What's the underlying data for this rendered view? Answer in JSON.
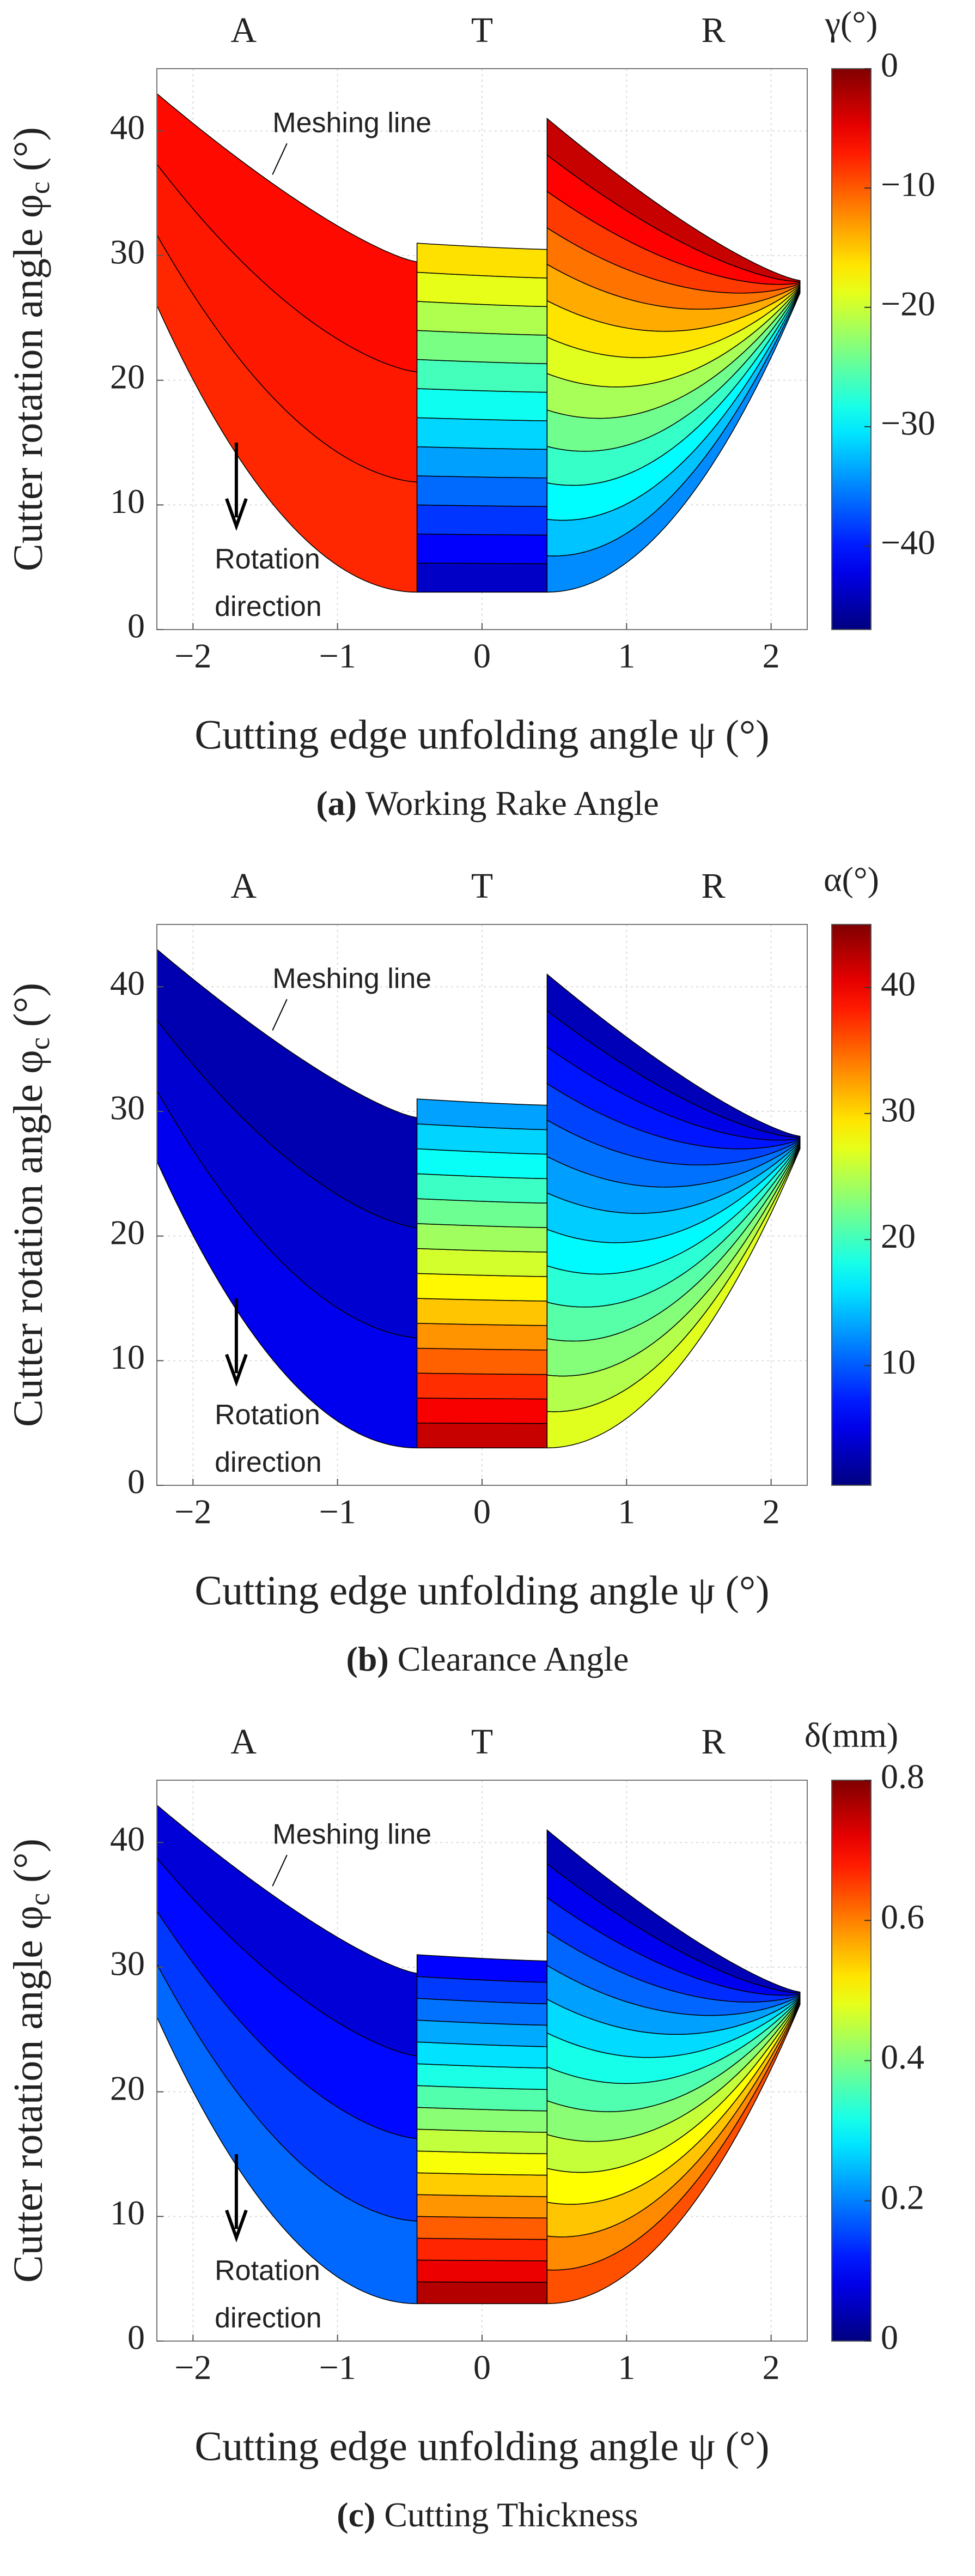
{
  "chart_data": [
    {
      "type": "contour",
      "panel": "(a)",
      "title": "Working Rake Angle",
      "xlabel": "Cutting edge unfolding angle ψ (°)",
      "ylabel": [
        "Cutter rotation angle φ",
        "c",
        " (°)"
      ],
      "colorbar_label": "γ(°)",
      "colormap": "jet",
      "xlim": [
        -2.25,
        2.25
      ],
      "ylim": [
        0,
        45
      ],
      "xticks": [
        {
          "value": -2,
          "label": "−2"
        },
        {
          "value": -1,
          "label": "−1"
        },
        0,
        1,
        2
      ],
      "yticks": [
        0,
        10,
        20,
        30,
        40
      ],
      "clim": [
        -47,
        0
      ],
      "cticks": [
        0,
        {
          "value": -10,
          "label": "−10"
        },
        {
          "value": -20,
          "label": "−20"
        },
        {
          "value": -30,
          "label": "−30"
        },
        {
          "value": -40,
          "label": "−40"
        }
      ],
      "grid": true,
      "annotations": [
        "Meshing line",
        "Rotation",
        "direction"
      ],
      "regions": [
        {
          "label": "A",
          "x": [
            -2.25,
            -0.45
          ],
          "top": [
            43,
            29.5
          ],
          "bottom": [
            26,
            3
          ],
          "value_range": [
            -6,
            -8
          ],
          "bands": 3
        },
        {
          "label": "T",
          "x": [
            -0.45,
            0.45
          ],
          "top": [
            31,
            30.5
          ],
          "bottom": [
            3,
            3
          ],
          "value_range": [
            -15,
            -45
          ],
          "bands": 12
        },
        {
          "label": "R",
          "x": [
            0.45,
            2.2
          ],
          "top": [
            41,
            28
          ],
          "bottom": [
            3,
            27
          ],
          "value_range": [
            -2,
            -36
          ],
          "bands": 13
        }
      ]
    },
    {
      "type": "contour",
      "panel": "(b)",
      "title": "Clearance Angle",
      "xlabel": "Cutting edge unfolding angle ψ (°)",
      "ylabel": [
        "Cutter rotation angle φ",
        "c",
        " (°)"
      ],
      "colorbar_label": "α(°)",
      "colormap": "jet",
      "xlim": [
        -2.25,
        2.25
      ],
      "ylim": [
        0,
        45
      ],
      "xticks": [
        {
          "value": -2,
          "label": "−2"
        },
        {
          "value": -1,
          "label": "−1"
        },
        0,
        1,
        2
      ],
      "yticks": [
        0,
        10,
        20,
        30,
        40
      ],
      "clim": [
        0.5,
        45
      ],
      "cticks": [
        10,
        20,
        30,
        40
      ],
      "grid": true,
      "annotations": [
        "Meshing line",
        "Rotation",
        "direction"
      ],
      "regions": [
        {
          "label": "A",
          "x": [
            -2.25,
            -0.45
          ],
          "top": [
            43,
            29.5
          ],
          "bottom": [
            26,
            3
          ],
          "value_range": [
            2,
            6
          ],
          "bands": 3
        },
        {
          "label": "T",
          "x": [
            -0.45,
            0.45
          ],
          "top": [
            31,
            30.5
          ],
          "bottom": [
            3,
            3
          ],
          "value_range": [
            12,
            43
          ],
          "bands": 14
        },
        {
          "label": "R",
          "x": [
            0.45,
            2.2
          ],
          "top": [
            41,
            28
          ],
          "bottom": [
            3,
            27
          ],
          "value_range": [
            2,
            28
          ],
          "bands": 13
        }
      ]
    },
    {
      "type": "contour",
      "panel": "(c)",
      "title": "Cutting Thickness",
      "xlabel": "Cutting edge unfolding angle ψ (°)",
      "ylabel": [
        "Cutter rotation angle φ",
        "c",
        " (°)"
      ],
      "colorbar_label": "δ(mm)",
      "colormap": "jet",
      "xlim": [
        -2.25,
        2.25
      ],
      "ylim": [
        0,
        45
      ],
      "xticks": [
        {
          "value": -2,
          "label": "−2"
        },
        {
          "value": -1,
          "label": "−1"
        },
        0,
        1,
        2
      ],
      "yticks": [
        0,
        10,
        20,
        30,
        40
      ],
      "clim": [
        0,
        0.8
      ],
      "cticks": [
        0,
        0.2,
        0.4,
        0.6,
        0.8
      ],
      "grid": true,
      "annotations": [
        "Meshing line",
        "Rotation",
        "direction"
      ],
      "regions": [
        {
          "label": "A",
          "x": [
            -2.25,
            -0.45
          ],
          "top": [
            43,
            29.5
          ],
          "bottom": [
            26,
            3
          ],
          "value_range": [
            0.05,
            0.2
          ],
          "bands": 4
        },
        {
          "label": "T",
          "x": [
            -0.45,
            0.45
          ],
          "top": [
            31,
            30.5
          ],
          "bottom": [
            3,
            3
          ],
          "value_range": [
            0.08,
            0.78
          ],
          "bands": 16
        },
        {
          "label": "R",
          "x": [
            0.45,
            2.2
          ],
          "top": [
            41,
            28
          ],
          "bottom": [
            3,
            27
          ],
          "value_range": [
            0.02,
            0.66
          ],
          "bands": 14
        }
      ]
    }
  ]
}
